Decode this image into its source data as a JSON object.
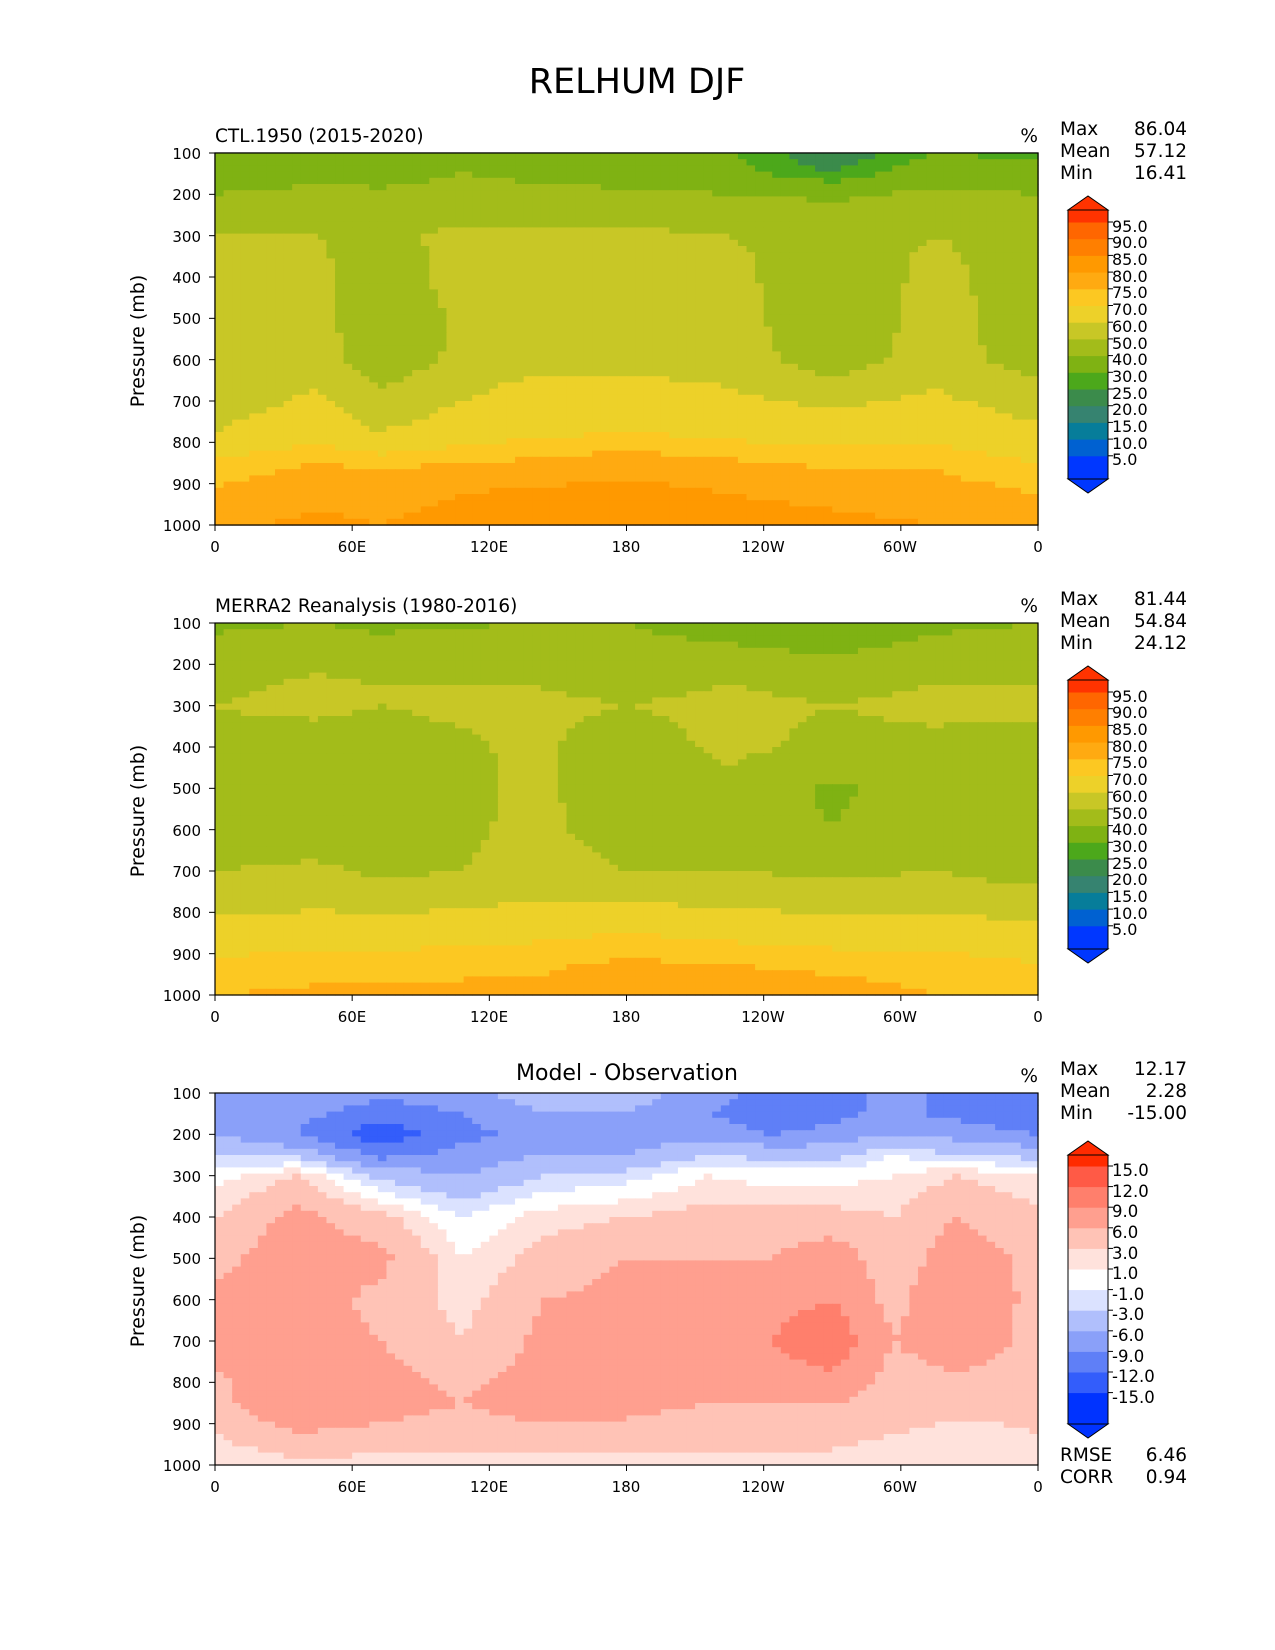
{
  "page": {
    "title": "RELHUM DJF"
  },
  "panels": [
    {
      "key": "p1",
      "title_left": "CTL.1950 (2015-2020)",
      "title_center": "",
      "units": "%",
      "stats": [
        {
          "label": "Max",
          "value": "86.04"
        },
        {
          "label": "Mean",
          "value": "57.12"
        },
        {
          "label": "Min",
          "value": "16.41"
        }
      ],
      "bottom_stats": [],
      "colorbar": {
        "labels": [
          "95.0",
          "90.0",
          "85.0",
          "80.0",
          "75.0",
          "70.0",
          "60.0",
          "50.0",
          "40.0",
          "30.0",
          "25.0",
          "20.0",
          "15.0",
          "10.0",
          "5.0"
        ],
        "colors": [
          "#ff3300",
          "#ff6600",
          "#ff7f00",
          "#ff9900",
          "#ffaa11",
          "#fcc822",
          "#edd129",
          "#c8c726",
          "#a3bc1a",
          "#7fb213",
          "#4ca81b",
          "#3b8b4b",
          "#368370",
          "#077d9a",
          "#0061d1",
          "#0037ff"
        ]
      }
    },
    {
      "key": "p2",
      "title_left": "MERRA2 Reanalysis (1980-2016)",
      "title_center": "",
      "units": "%",
      "stats": [
        {
          "label": "Max",
          "value": "81.44"
        },
        {
          "label": "Mean",
          "value": "54.84"
        },
        {
          "label": "Min",
          "value": "24.12"
        }
      ],
      "bottom_stats": [],
      "colorbar": {
        "labels": [
          "95.0",
          "90.0",
          "85.0",
          "80.0",
          "75.0",
          "70.0",
          "60.0",
          "50.0",
          "40.0",
          "30.0",
          "25.0",
          "20.0",
          "15.0",
          "10.0",
          "5.0"
        ],
        "colors": [
          "#ff3300",
          "#ff6600",
          "#ff7f00",
          "#ff9900",
          "#ffaa11",
          "#fcc822",
          "#edd129",
          "#c8c726",
          "#a3bc1a",
          "#7fb213",
          "#4ca81b",
          "#3b8b4b",
          "#368370",
          "#077d9a",
          "#0061d1",
          "#0037ff"
        ]
      }
    },
    {
      "key": "p3",
      "title_left": "",
      "title_center": "Model - Observation",
      "units": "%",
      "stats": [
        {
          "label": "Max",
          "value": "12.17"
        },
        {
          "label": "Mean",
          "value": "2.28"
        },
        {
          "label": "Min",
          "value": "-15.00"
        }
      ],
      "bottom_stats": [
        {
          "label": "RMSE",
          "value": "6.46"
        },
        {
          "label": "CORR",
          "value": "0.94"
        }
      ],
      "colorbar": {
        "labels": [
          "15.0",
          "12.0",
          "9.0",
          "6.0",
          "3.0",
          "1.0",
          "-1.0",
          "-3.0",
          "-6.0",
          "-9.0",
          "-12.0",
          "-15.0"
        ],
        "colors": [
          "#ff2b00",
          "#ff5a46",
          "#ff7f6c",
          "#ff9f8f",
          "#ffc3b6",
          "#ffe2dc",
          "#ffffff",
          "#dbe2ff",
          "#b0bffc",
          "#8aa0f9",
          "#5f7ff7",
          "#335dfb",
          "#0033ff"
        ]
      }
    }
  ],
  "chart_data": [
    {
      "type": "heatmap",
      "title": "CTL.1950 (2015-2020)",
      "xlabel": "",
      "ylabel": "Pressure (mb)",
      "x_ticks": [
        "0",
        "60E",
        "120E",
        "180",
        "120W",
        "60W",
        "0"
      ],
      "y_ticks": [
        "100",
        "200",
        "300",
        "400",
        "500",
        "600",
        "700",
        "800",
        "900",
        "1000"
      ],
      "ylim": [
        1000,
        100
      ],
      "x_pos": [
        0,
        1
      ],
      "y": [
        100,
        150,
        200,
        250,
        300,
        400,
        500,
        600,
        700,
        775,
        850,
        925,
        1000
      ],
      "columns": [
        {
          "x": 0.0,
          "values": [
            30,
            35,
            40,
            45,
            50,
            52,
            52,
            52,
            55,
            60,
            72,
            76,
            79
          ]
        },
        {
          "x": 0.125,
          "values": [
            35,
            38,
            42,
            48,
            50,
            52,
            53,
            55,
            62,
            68,
            75,
            79,
            81
          ]
        },
        {
          "x": 0.2,
          "values": [
            32,
            36,
            42,
            45,
            48,
            44,
            42,
            44,
            52,
            60,
            74,
            78,
            80
          ]
        },
        {
          "x": 0.3,
          "values": [
            35,
            40,
            44,
            48,
            52,
            54,
            52,
            52,
            60,
            66,
            75,
            80,
            82
          ]
        },
        {
          "x": 0.375,
          "values": [
            34,
            38,
            43,
            48,
            52,
            54,
            55,
            56,
            65,
            68,
            76,
            81,
            82
          ]
        },
        {
          "x": 0.5,
          "values": [
            30,
            35,
            42,
            48,
            52,
            55,
            56,
            58,
            64,
            70,
            78,
            82,
            83
          ]
        },
        {
          "x": 0.625,
          "values": [
            30,
            33,
            40,
            45,
            50,
            52,
            54,
            56,
            62,
            68,
            76,
            80,
            82
          ]
        },
        {
          "x": 0.75,
          "values": [
            20,
            25,
            38,
            44,
            48,
            45,
            42,
            44,
            58,
            66,
            74,
            79,
            81
          ]
        },
        {
          "x": 0.875,
          "values": [
            30,
            36,
            42,
            46,
            50,
            52,
            54,
            55,
            62,
            68,
            74,
            78,
            80
          ]
        },
        {
          "x": 1.0,
          "values": [
            28,
            34,
            40,
            45,
            48,
            46,
            44,
            45,
            55,
            62,
            70,
            75,
            78
          ]
        }
      ]
    },
    {
      "type": "heatmap",
      "title": "MERRA2 Reanalysis (1980-2016)",
      "xlabel": "",
      "ylabel": "Pressure (mb)",
      "x_ticks": [
        "0",
        "60E",
        "120E",
        "180",
        "120W",
        "60W",
        "0"
      ],
      "y_ticks": [
        "100",
        "200",
        "300",
        "400",
        "500",
        "600",
        "700",
        "800",
        "900",
        "1000"
      ],
      "ylim": [
        1000,
        100
      ],
      "x_pos": [
        0,
        1
      ],
      "y": [
        100,
        150,
        200,
        250,
        300,
        400,
        500,
        600,
        700,
        775,
        850,
        925,
        1000
      ],
      "columns": [
        {
          "x": 0.0,
          "values": [
            38,
            42,
            45,
            48,
            50,
            48,
            45,
            44,
            50,
            56,
            64,
            72,
            75
          ]
        },
        {
          "x": 0.125,
          "values": [
            40,
            44,
            48,
            52,
            52,
            46,
            44,
            44,
            52,
            58,
            66,
            73,
            76
          ]
        },
        {
          "x": 0.2,
          "values": [
            38,
            42,
            47,
            50,
            50,
            46,
            44,
            44,
            48,
            56,
            66,
            73,
            76
          ]
        },
        {
          "x": 0.3,
          "values": [
            39,
            43,
            47,
            50,
            52,
            48,
            46,
            46,
            50,
            58,
            67,
            74,
            76
          ]
        },
        {
          "x": 0.375,
          "values": [
            40,
            43,
            46,
            50,
            52,
            52,
            53,
            54,
            56,
            60,
            68,
            74,
            76
          ]
        },
        {
          "x": 0.5,
          "values": [
            40,
            42,
            46,
            48,
            50,
            46,
            44,
            45,
            50,
            60,
            70,
            76,
            77
          ]
        },
        {
          "x": 0.625,
          "values": [
            36,
            40,
            45,
            50,
            52,
            52,
            48,
            46,
            50,
            58,
            68,
            75,
            77
          ]
        },
        {
          "x": 0.75,
          "values": [
            32,
            36,
            44,
            48,
            50,
            48,
            38,
            40,
            48,
            56,
            66,
            74,
            77
          ]
        },
        {
          "x": 0.875,
          "values": [
            38,
            42,
            46,
            50,
            52,
            48,
            46,
            46,
            50,
            56,
            66,
            73,
            75
          ]
        },
        {
          "x": 1.0,
          "values": [
            40,
            43,
            46,
            50,
            52,
            46,
            42,
            42,
            46,
            54,
            64,
            70,
            74
          ]
        }
      ]
    },
    {
      "type": "heatmap",
      "title": "Model - Observation",
      "xlabel": "",
      "ylabel": "Pressure (mb)",
      "x_ticks": [
        "0",
        "60E",
        "120E",
        "180",
        "120W",
        "60W",
        "0"
      ],
      "y_ticks": [
        "100",
        "200",
        "300",
        "400",
        "500",
        "600",
        "700",
        "800",
        "900",
        "1000"
      ],
      "ylim": [
        1000,
        100
      ],
      "x_pos": [
        0,
        1
      ],
      "y": [
        100,
        150,
        200,
        250,
        300,
        400,
        500,
        600,
        700,
        775,
        850,
        925,
        1000
      ],
      "columns": [
        {
          "x": 0.0,
          "values": [
            -8,
            -8,
            -6,
            -3,
            0,
            3,
            5,
            7,
            7,
            6,
            5,
            3,
            1
          ]
        },
        {
          "x": 0.1,
          "values": [
            -6,
            -8,
            -9,
            -4,
            3,
            7,
            8,
            8,
            8,
            7,
            9,
            6,
            2
          ]
        },
        {
          "x": 0.2,
          "values": [
            -8,
            -11,
            -14,
            -10,
            -4,
            4,
            7,
            5,
            6,
            7,
            8,
            5,
            2
          ]
        },
        {
          "x": 0.3,
          "values": [
            -7,
            -9,
            -10,
            -8,
            -6,
            -1,
            1,
            2,
            3,
            5,
            6,
            4,
            2
          ]
        },
        {
          "x": 0.4,
          "values": [
            -4,
            -6,
            -8,
            -6,
            -3,
            2,
            4,
            6,
            7,
            7,
            8,
            5,
            2
          ]
        },
        {
          "x": 0.5,
          "values": [
            -4,
            -6,
            -8,
            -6,
            -2,
            3,
            6,
            7,
            8,
            7,
            7,
            5,
            2
          ]
        },
        {
          "x": 0.6,
          "values": [
            -8,
            -9,
            -7,
            -3,
            1,
            4,
            6,
            7,
            8,
            6,
            6,
            4,
            2
          ]
        },
        {
          "x": 0.675,
          "values": [
            -10,
            -11,
            -9,
            -4,
            0,
            4,
            6,
            8,
            9,
            8,
            6,
            4,
            2
          ]
        },
        {
          "x": 0.75,
          "values": [
            -10,
            -10,
            -8,
            -4,
            0,
            4,
            8,
            9,
            11,
            9,
            6,
            4,
            2
          ]
        },
        {
          "x": 0.825,
          "values": [
            -8,
            -8,
            -6,
            -1,
            1,
            3,
            4,
            5,
            6,
            5,
            5,
            3,
            1
          ]
        },
        {
          "x": 0.9,
          "values": [
            -10,
            -10,
            -7,
            -3,
            3,
            6,
            8,
            9,
            8,
            6,
            4,
            2,
            1
          ]
        },
        {
          "x": 1.0,
          "values": [
            -12,
            -12,
            -9,
            -4,
            1,
            4,
            5,
            5,
            5,
            5,
            4,
            3,
            1
          ]
        }
      ]
    }
  ]
}
